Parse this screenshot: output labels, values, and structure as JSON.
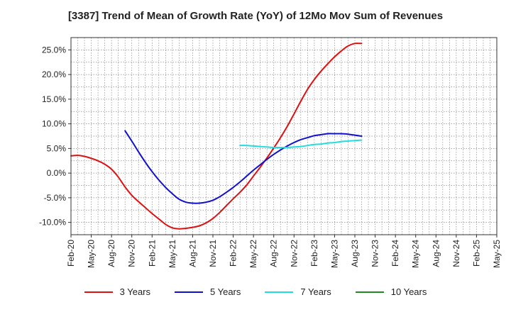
{
  "chart_data": {
    "type": "line",
    "title": "[3387]  Trend of Mean of Growth Rate (YoY) of 12Mo Mov Sum of Revenues",
    "xlabel": "",
    "ylabel": "",
    "ylim": [
      -12.5,
      27.5
    ],
    "yticks": [
      -10,
      -5,
      0,
      5,
      10,
      15,
      20,
      25
    ],
    "ytick_labels": [
      "-10.0%",
      "-5.0%",
      "0.0%",
      "5.0%",
      "10.0%",
      "15.0%",
      "20.0%",
      "25.0%"
    ],
    "x_tick_labels": [
      "Feb-20",
      "May-20",
      "Aug-20",
      "Nov-20",
      "Feb-21",
      "May-21",
      "Aug-21",
      "Nov-21",
      "Feb-22",
      "May-22",
      "Aug-22",
      "Nov-22",
      "Feb-23",
      "May-23",
      "Aug-23",
      "Nov-23",
      "Feb-24",
      "May-24",
      "Aug-24",
      "Nov-24",
      "Feb-25",
      "May-25"
    ],
    "grid": true,
    "legend_position": "bottom",
    "series": [
      {
        "name": "3 Years",
        "color": "#dd1111",
        "points": [
          [
            0,
            3.5
          ],
          [
            1,
            3.6
          ],
          [
            2,
            3.4
          ],
          [
            3,
            3.0
          ],
          [
            4,
            2.5
          ],
          [
            5,
            1.8
          ],
          [
            6,
            0.8
          ],
          [
            7,
            -0.8
          ],
          [
            8,
            -2.8
          ],
          [
            9,
            -4.5
          ],
          [
            10,
            -5.8
          ],
          [
            11,
            -7.0
          ],
          [
            12,
            -8.2
          ],
          [
            13,
            -9.3
          ],
          [
            14,
            -10.4
          ],
          [
            15,
            -11.1
          ],
          [
            16,
            -11.3
          ],
          [
            17,
            -11.2
          ],
          [
            18,
            -11.0
          ],
          [
            19,
            -10.7
          ],
          [
            20,
            -10.1
          ],
          [
            21,
            -9.2
          ],
          [
            22,
            -8.0
          ],
          [
            23,
            -6.6
          ],
          [
            24,
            -5.2
          ],
          [
            25,
            -3.9
          ],
          [
            26,
            -2.4
          ],
          [
            27,
            -0.6
          ],
          [
            28,
            1.2
          ],
          [
            29,
            3.1
          ],
          [
            30,
            5.1
          ],
          [
            31,
            7.2
          ],
          [
            32,
            9.5
          ],
          [
            33,
            12.0
          ],
          [
            34,
            14.6
          ],
          [
            35,
            17.0
          ],
          [
            36,
            19.0
          ],
          [
            37,
            20.7
          ],
          [
            38,
            22.2
          ],
          [
            39,
            23.6
          ],
          [
            40,
            24.8
          ],
          [
            41,
            25.8
          ],
          [
            42,
            26.3
          ],
          [
            43,
            26.3
          ]
        ]
      },
      {
        "name": "5 Years",
        "color": "#1111cc",
        "points": [
          [
            8,
            8.6
          ],
          [
            9,
            6.5
          ],
          [
            10,
            4.3
          ],
          [
            11,
            2.2
          ],
          [
            12,
            0.3
          ],
          [
            13,
            -1.4
          ],
          [
            14,
            -2.9
          ],
          [
            15,
            -4.2
          ],
          [
            16,
            -5.3
          ],
          [
            17,
            -5.9
          ],
          [
            18,
            -6.1
          ],
          [
            19,
            -6.1
          ],
          [
            20,
            -5.9
          ],
          [
            21,
            -5.5
          ],
          [
            22,
            -4.8
          ],
          [
            23,
            -3.9
          ],
          [
            24,
            -2.9
          ],
          [
            25,
            -1.8
          ],
          [
            26,
            -0.6
          ],
          [
            27,
            0.6
          ],
          [
            28,
            1.7
          ],
          [
            29,
            2.8
          ],
          [
            30,
            3.8
          ],
          [
            31,
            4.7
          ],
          [
            32,
            5.5
          ],
          [
            33,
            6.2
          ],
          [
            34,
            6.8
          ],
          [
            35,
            7.2
          ],
          [
            36,
            7.6
          ],
          [
            37,
            7.8
          ],
          [
            38,
            8.0
          ],
          [
            39,
            8.0
          ],
          [
            40,
            8.0
          ],
          [
            41,
            7.9
          ],
          [
            42,
            7.7
          ],
          [
            43,
            7.5
          ]
        ]
      },
      {
        "name": "7 Years",
        "color": "#22dddd",
        "points": [
          [
            25,
            5.6
          ],
          [
            26,
            5.6
          ],
          [
            27,
            5.5
          ],
          [
            28,
            5.4
          ],
          [
            29,
            5.3
          ],
          [
            30,
            5.2
          ],
          [
            31,
            5.2
          ],
          [
            32,
            5.2
          ],
          [
            33,
            5.3
          ],
          [
            34,
            5.4
          ],
          [
            35,
            5.6
          ],
          [
            36,
            5.8
          ],
          [
            37,
            5.9
          ],
          [
            38,
            6.1
          ],
          [
            39,
            6.2
          ],
          [
            40,
            6.4
          ],
          [
            41,
            6.5
          ],
          [
            42,
            6.6
          ],
          [
            43,
            6.7
          ]
        ]
      },
      {
        "name": "10 Years",
        "color": "#228822",
        "points": []
      }
    ]
  }
}
